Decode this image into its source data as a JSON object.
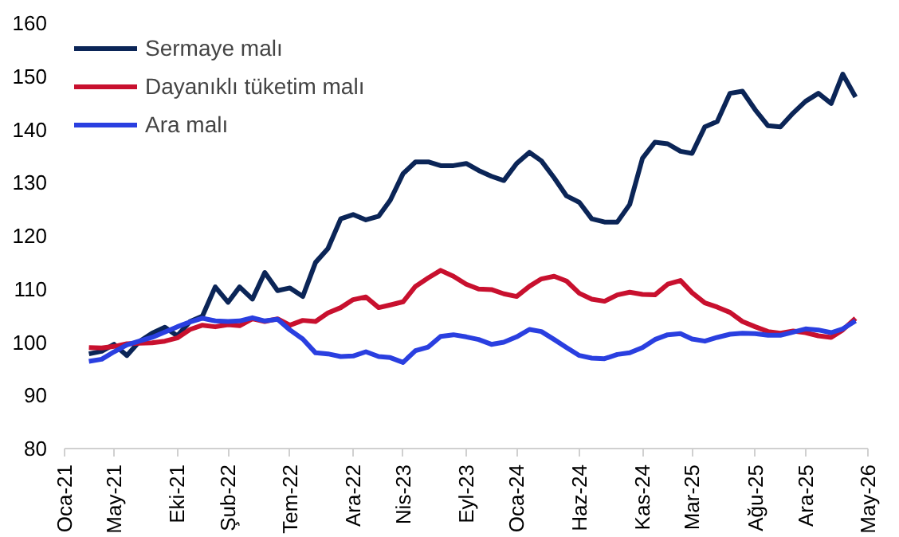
{
  "chart_data": {
    "type": "line",
    "x": [
      "2021-03",
      "2021-04",
      "2021-05",
      "2021-06",
      "2021-07",
      "2021-08",
      "2021-09",
      "2021-10",
      "2021-11",
      "2021-12",
      "2022-01",
      "2022-02",
      "2022-03",
      "2022-04",
      "2022-05",
      "2022-06",
      "2022-07",
      "2022-08",
      "2022-09",
      "2022-10",
      "2022-11",
      "2022-12",
      "2023-01",
      "2023-02",
      "2023-03",
      "2023-04",
      "2023-05",
      "2023-06",
      "2023-07",
      "2023-08",
      "2023-09",
      "2023-10",
      "2023-11",
      "2023-12",
      "2024-01",
      "2024-02",
      "2024-03",
      "2024-04",
      "2024-05",
      "2024-06",
      "2024-07",
      "2024-08",
      "2024-09",
      "2024-10",
      "2024-11",
      "2024-12",
      "2025-01",
      "2025-02",
      "2025-03",
      "2025-04",
      "2025-05",
      "2025-06",
      "2025-07",
      "2025-08",
      "2025-09",
      "2025-10",
      "2025-11",
      "2025-12",
      "2026-01",
      "2026-02",
      "2026-03",
      "2026-04"
    ],
    "series": [
      {
        "name": "Sermaye malı",
        "color": "#0b2557",
        "values": [
          97.8,
          98.3,
          99.6,
          97.5,
          100.1,
          101.7,
          102.8,
          101.2,
          103.9,
          104.9,
          110.4,
          107.5,
          110.4,
          108.1,
          113.1,
          109.7,
          110.2,
          108.6,
          115.0,
          117.6,
          123.2,
          124.0,
          123.0,
          123.7,
          126.7,
          131.7,
          133.9,
          133.9,
          133.2,
          133.2,
          133.6,
          132.3,
          131.2,
          130.4,
          133.6,
          135.7,
          134.1,
          130.9,
          127.5,
          126.3,
          123.2,
          122.6,
          122.6,
          125.9,
          134.6,
          137.6,
          137.3,
          135.9,
          135.5,
          140.5,
          141.5,
          146.8,
          147.2,
          143.7,
          140.7,
          140.5,
          143.1,
          145.3,
          146.8,
          144.9,
          150.4,
          146.1
        ]
      },
      {
        "name": "Dayanıklı tüketim malı",
        "color": "#c8102e",
        "values": [
          99.0,
          98.9,
          99.2,
          99.7,
          99.8,
          99.9,
          100.2,
          100.8,
          102.4,
          103.2,
          102.9,
          103.3,
          103.1,
          104.4,
          103.9,
          104.4,
          103.2,
          104.1,
          103.9,
          105.5,
          106.5,
          108.0,
          108.5,
          106.5,
          107.0,
          107.6,
          110.5,
          112.1,
          113.5,
          112.4,
          110.9,
          110.0,
          109.9,
          109.1,
          108.6,
          110.5,
          111.9,
          112.4,
          111.5,
          109.2,
          108.1,
          107.7,
          108.9,
          109.4,
          109.0,
          108.9,
          110.9,
          111.6,
          109.3,
          107.4,
          106.6,
          105.6,
          103.9,
          102.9,
          102.0,
          101.7,
          102.1,
          101.8,
          101.2,
          100.9,
          102.3,
          104.5
        ]
      },
      {
        "name": "Ara malı",
        "color": "#2a3fe0",
        "values": [
          96.4,
          96.8,
          98.2,
          99.5,
          100.2,
          100.9,
          101.9,
          102.9,
          103.8,
          104.5,
          104.0,
          103.9,
          104.0,
          104.6,
          104.0,
          104.3,
          102.3,
          100.6,
          98.0,
          97.8,
          97.3,
          97.4,
          98.2,
          97.3,
          97.1,
          96.2,
          98.4,
          99.1,
          101.1,
          101.4,
          101.0,
          100.5,
          99.6,
          100.0,
          101.0,
          102.4,
          102.0,
          100.5,
          99.0,
          97.5,
          97.0,
          96.9,
          97.7,
          98.0,
          99.0,
          100.5,
          101.4,
          101.6,
          100.6,
          100.2,
          100.9,
          101.5,
          101.7,
          101.6,
          101.3,
          101.3,
          101.9,
          102.5,
          102.3,
          101.8,
          102.5,
          104.0
        ]
      }
    ],
    "xlim": [
      "2021-01",
      "2026-05"
    ],
    "xticks": [
      {
        "value": "2021-01",
        "label": "Oca-21"
      },
      {
        "value": "2021-05",
        "label": "May-21"
      },
      {
        "value": "2021-10",
        "label": "Eki-21"
      },
      {
        "value": "2022-02",
        "label": "Şub-22"
      },
      {
        "value": "2022-07",
        "label": "Tem-22"
      },
      {
        "value": "2022-12",
        "label": "Ara-22"
      },
      {
        "value": "2023-04",
        "label": "Nis-23"
      },
      {
        "value": "2023-09",
        "label": "Eyl-23"
      },
      {
        "value": "2024-01",
        "label": "Oca-24"
      },
      {
        "value": "2024-06",
        "label": "Haz-24"
      },
      {
        "value": "2024-11",
        "label": "Kas-24"
      },
      {
        "value": "2025-03",
        "label": "Mar-25"
      },
      {
        "value": "2025-08",
        "label": "Ağu-25"
      },
      {
        "value": "2025-12",
        "label": "Ara-25"
      },
      {
        "value": "2026-05",
        "label": "May-26"
      }
    ],
    "ylim": [
      80,
      160
    ],
    "yticks": [
      80,
      90,
      100,
      110,
      120,
      130,
      140,
      150,
      160
    ],
    "grid": false,
    "legend": "top left",
    "marker": "none",
    "line_style": "solid"
  }
}
